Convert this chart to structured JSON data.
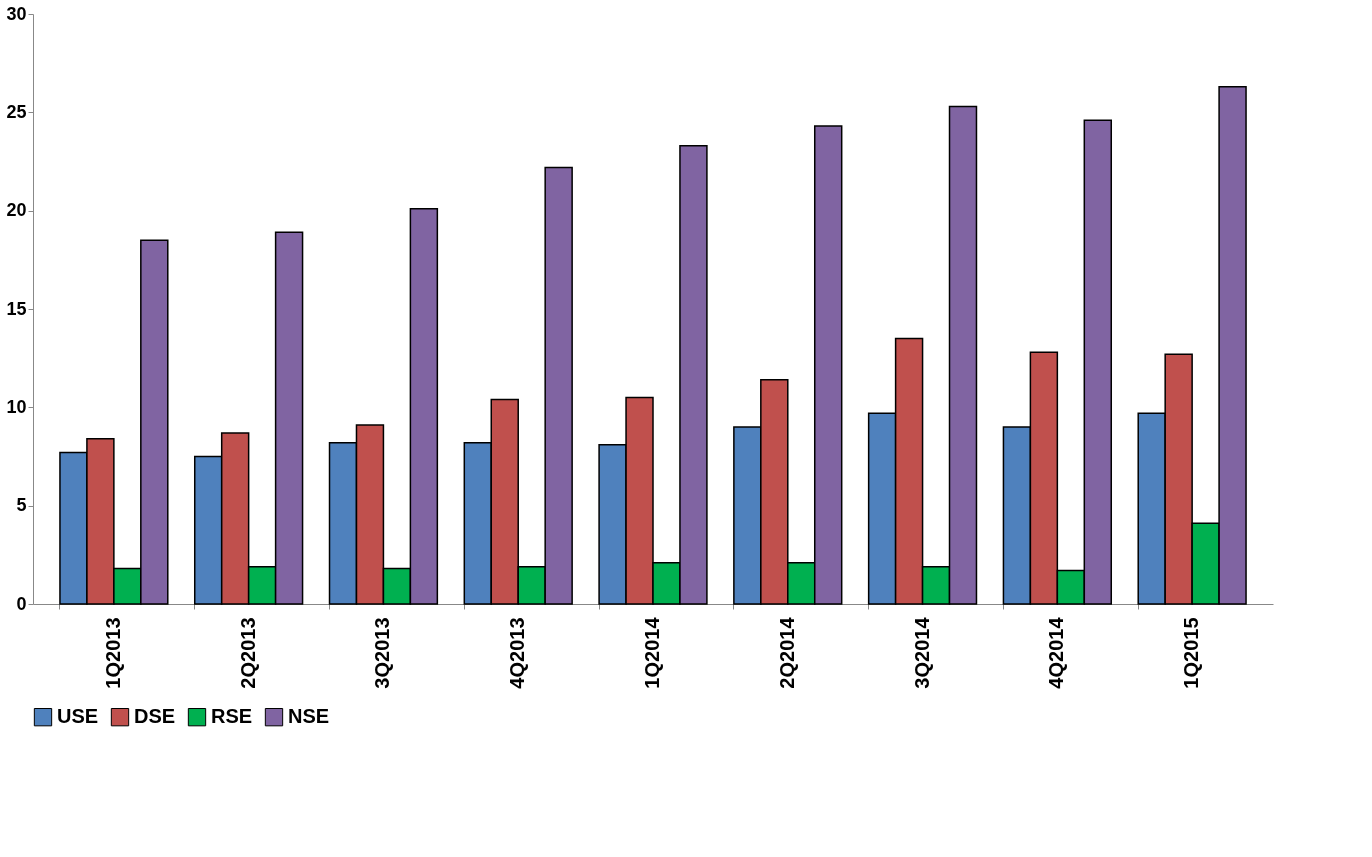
{
  "chart_data": {
    "type": "bar",
    "categories": [
      "1Q2013",
      "2Q2013",
      "3Q2013",
      "4Q2013",
      "1Q2014",
      "2Q2014",
      "3Q2014",
      "4Q2014",
      "1Q2015"
    ],
    "series": [
      {
        "name": "USE",
        "color": "#4f81bd",
        "values": [
          7.7,
          7.5,
          8.2,
          8.2,
          8.1,
          9.0,
          9.7,
          9.0,
          9.7
        ]
      },
      {
        "name": "DSE",
        "color": "#c0504d",
        "values": [
          8.4,
          8.7,
          9.1,
          10.4,
          10.5,
          11.4,
          13.5,
          12.8,
          12.7
        ]
      },
      {
        "name": "RSE",
        "color": "#00b050",
        "values": [
          1.8,
          1.9,
          1.8,
          1.9,
          2.1,
          2.1,
          1.9,
          1.7,
          4.1
        ]
      },
      {
        "name": "NSE",
        "color": "#8064a2",
        "values": [
          18.5,
          18.9,
          20.1,
          22.2,
          23.3,
          24.3,
          25.3,
          24.6,
          26.3
        ]
      }
    ],
    "ylim": [
      0,
      30
    ],
    "yticks": [
      0,
      5,
      10,
      15,
      20,
      25,
      30
    ],
    "grid": false,
    "legend": "bottom"
  }
}
